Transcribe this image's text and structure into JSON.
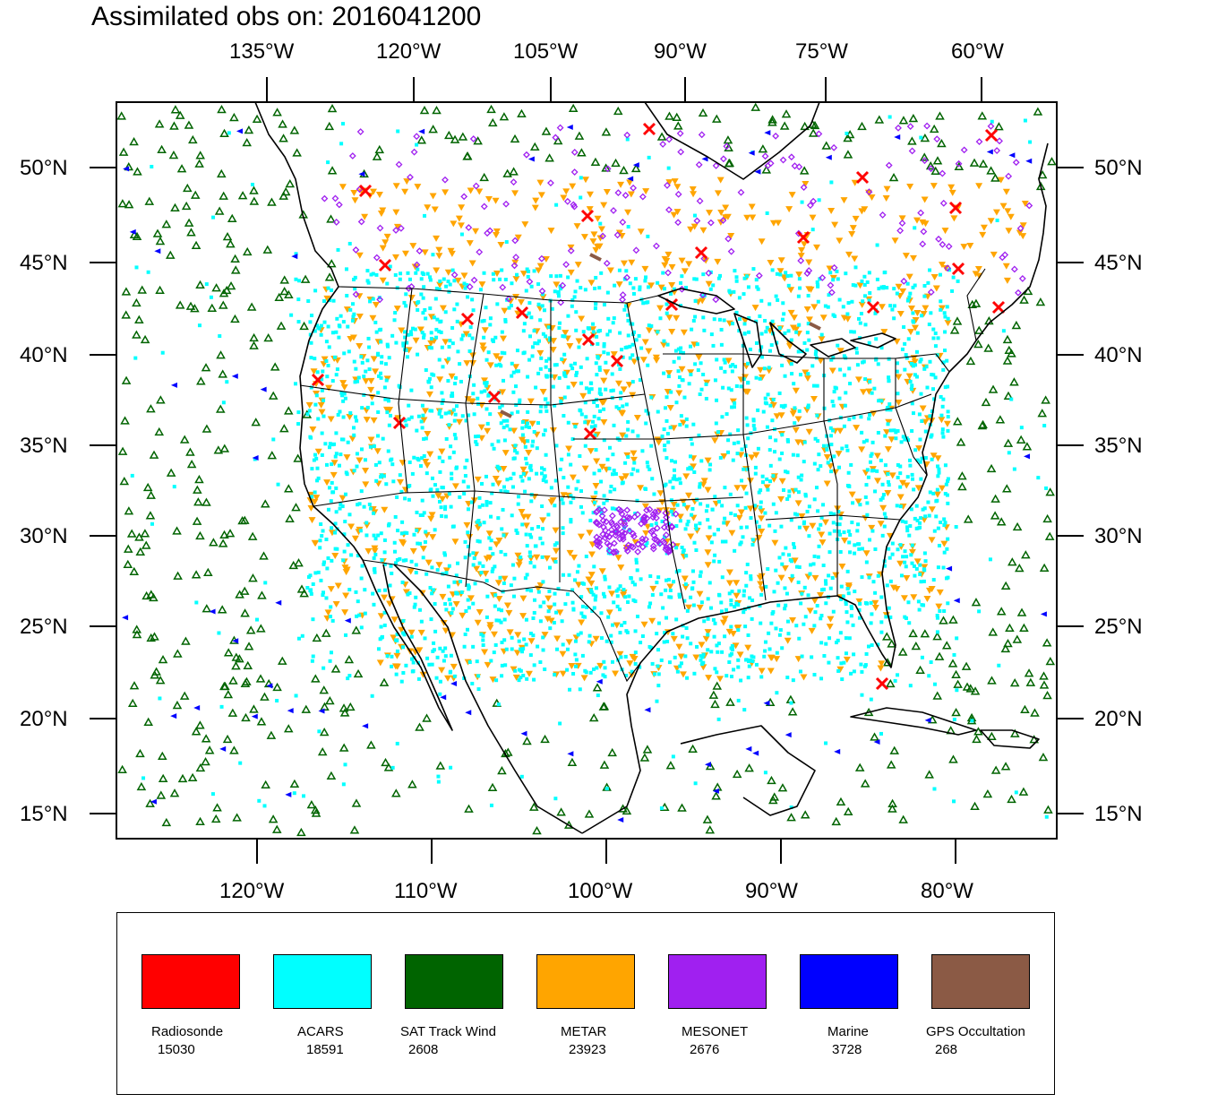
{
  "title": "Assimilated obs on: 2016041200",
  "map": {
    "top_axis_labels": [
      "135°W",
      "120°W",
      "105°W",
      "90°W",
      "75°W",
      "60°W"
    ],
    "bottom_axis_labels": [
      "120°W",
      "110°W",
      "100°W",
      "90°W",
      "80°W"
    ],
    "lat_labels": [
      "50°N",
      "45°N",
      "40°N",
      "35°N",
      "30°N",
      "25°N",
      "20°N",
      "15°N"
    ],
    "region": "Continental United States, southern Canada, Mexico, Gulf of Mexico, Caribbean and adjacent Pacific/Atlantic",
    "land_fill_color": "#ffffff",
    "coastline_color": "#000000"
  },
  "legend": {
    "items": [
      {
        "name": "Radiosonde",
        "count": "15030",
        "color": "#ff0000",
        "marker": "x-icon"
      },
      {
        "name": "ACARS",
        "count": "18591",
        "color": "#00ffff",
        "marker": "square-dot-icon"
      },
      {
        "name": "SAT Track Wind",
        "count": "2608",
        "color": "#006400",
        "marker": "triangle-up-icon"
      },
      {
        "name": "METAR",
        "count": "23923",
        "color": "#ffa500",
        "marker": "triangle-down-icon"
      },
      {
        "name": "MESONET",
        "count": "2676",
        "color": "#a020f0",
        "marker": "diamond-icon"
      },
      {
        "name": "Marine",
        "count": "3728",
        "color": "#0000ff",
        "marker": "triangle-left-icon"
      },
      {
        "name": "GPS Occultation",
        "count": "268",
        "color": "#8b5a45",
        "marker": "ribbon-icon"
      }
    ]
  }
}
